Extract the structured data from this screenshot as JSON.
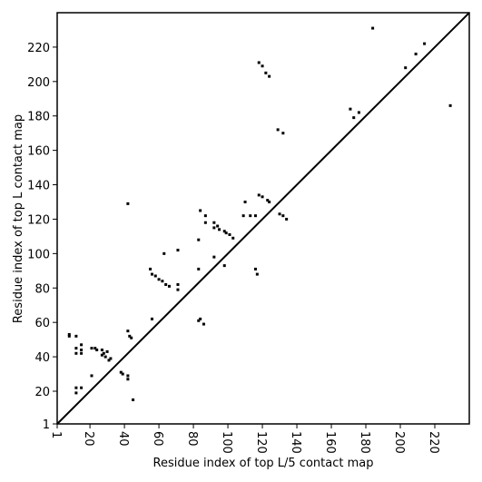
{
  "chart_data": {
    "type": "scatter",
    "x_label": "Residue index of top L/5 contact map",
    "y_label": "Residue index of top L contact map",
    "xlim": [
      1,
      240
    ],
    "ylim": [
      1,
      240
    ],
    "xticks": [
      1,
      20,
      40,
      60,
      80,
      100,
      120,
      140,
      160,
      180,
      200,
      220
    ],
    "yticks": [
      1,
      20,
      40,
      60,
      80,
      100,
      120,
      140,
      160,
      180,
      200,
      220
    ],
    "diagonal": true,
    "color": "#000000",
    "x": [
      8,
      8,
      12,
      12,
      12,
      15,
      15,
      15,
      12,
      15,
      12,
      21,
      23,
      24,
      21,
      27,
      28,
      29,
      31,
      32,
      27,
      30,
      38,
      39,
      42,
      42,
      42,
      43,
      44,
      45,
      42,
      55,
      56,
      58,
      60,
      62,
      64,
      66,
      56,
      63,
      71,
      71,
      71,
      83,
      84,
      83,
      84,
      83,
      86,
      87,
      87,
      92,
      92,
      94,
      92,
      95,
      98,
      99,
      101,
      103,
      98,
      109,
      113,
      116,
      110,
      116,
      117,
      118,
      120,
      123,
      124,
      130,
      132,
      134,
      129,
      132,
      118,
      120,
      122,
      124,
      171,
      173,
      176,
      184,
      203,
      209,
      214,
      229
    ],
    "values": [
      53,
      52,
      52,
      42,
      45,
      47,
      44,
      42,
      22,
      22,
      19,
      45,
      45,
      44,
      29,
      44,
      42,
      40,
      38,
      39,
      41,
      43,
      31,
      30,
      29,
      27,
      55,
      52,
      51,
      15,
      129,
      91,
      88,
      87,
      85,
      84,
      82,
      81,
      62,
      100,
      102,
      82,
      79,
      108,
      125,
      91,
      62,
      61,
      59,
      122,
      118,
      118,
      115,
      116,
      98,
      114,
      113,
      112,
      111,
      109,
      93,
      122,
      122,
      122,
      130,
      91,
      88,
      134,
      133,
      131,
      130,
      123,
      122,
      120,
      172,
      170,
      211,
      209,
      205,
      203,
      184,
      179,
      182,
      231,
      208,
      216,
      222,
      186
    ]
  }
}
